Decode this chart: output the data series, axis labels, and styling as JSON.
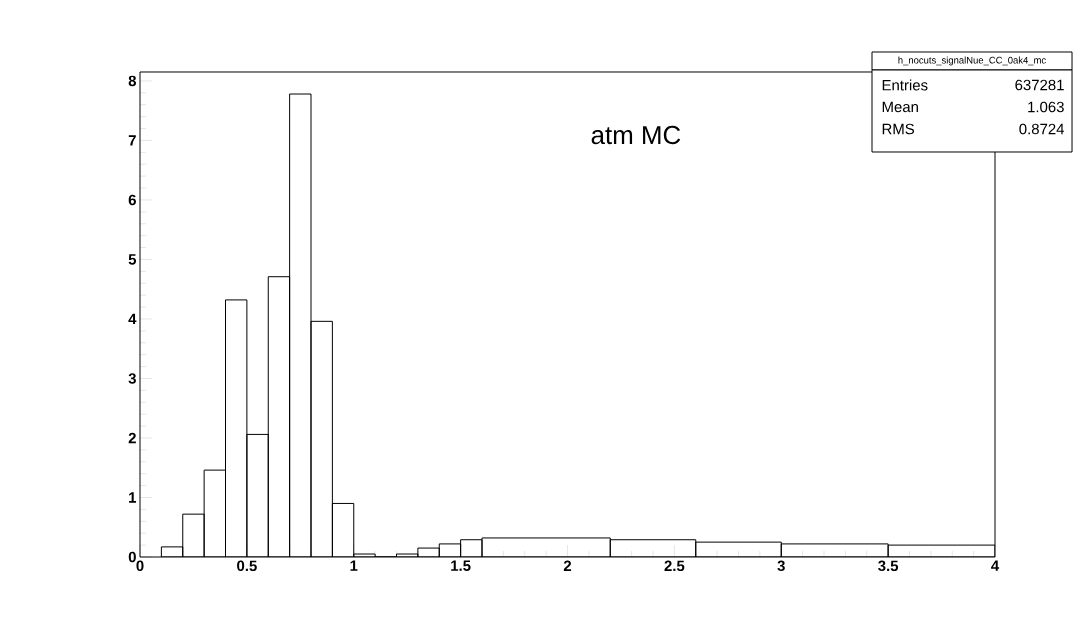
{
  "chart_data": {
    "type": "histogram",
    "title": "h_nocuts_signalNue_CC_0ak4_mc",
    "annotations": [
      "atm MC",
      "Entries",
      "637281",
      "Mean",
      "1.063",
      "RMS",
      "0.8724"
    ],
    "bins": [
      0.1,
      0.2,
      0.3,
      0.4,
      0.5,
      0.6,
      0.7,
      0.8,
      0.9,
      1.0,
      1.1,
      1.2,
      1.3,
      1.4,
      1.5,
      1.6,
      2.2,
      2.6,
      3.0,
      3.5,
      4.0
    ],
    "values": [
      0.17,
      0.72,
      1.46,
      4.32,
      2.06,
      4.71,
      7.78,
      3.96,
      0.9,
      0.05,
      0,
      0.05,
      0.15,
      0.22,
      0.29,
      0.32,
      0.29,
      0.25,
      0.22,
      0.2
    ],
    "color": "#000000",
    "xlim": [
      0,
      4
    ],
    "ylim": [
      0,
      8.15
    ],
    "xticks": [
      0,
      0.5,
      1,
      1.5,
      2,
      2.5,
      3,
      3.5,
      4
    ],
    "yticks": [
      0,
      1,
      2,
      3,
      4,
      5,
      6,
      7,
      8
    ],
    "grid": false
  }
}
